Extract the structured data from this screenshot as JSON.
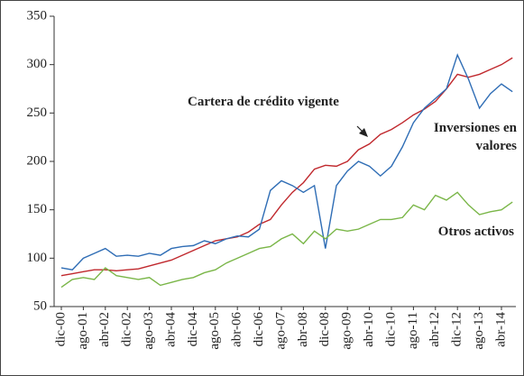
{
  "chart_data": {
    "type": "line",
    "categories": [
      "dic-00",
      null,
      "ago-01",
      null,
      "abr-02",
      null,
      "dic-02",
      null,
      "ago-03",
      null,
      "abr-04",
      null,
      "dic-04",
      null,
      "ago-05",
      null,
      "abr-06",
      null,
      "dic-06",
      null,
      "ago-07",
      null,
      "abr-08",
      null,
      "dic-08",
      null,
      "ago-09",
      null,
      "abr-10",
      null,
      "dic-10",
      null,
      "ago-11",
      null,
      "abr-12",
      null,
      "dic-12",
      null,
      "ago-13",
      null,
      "abr-14",
      null
    ],
    "series": [
      {
        "name": "Cartera de crédito vigente",
        "color": "#c0282d",
        "values": [
          82,
          84,
          86,
          88,
          88,
          87,
          88,
          89,
          92,
          95,
          98,
          103,
          108,
          113,
          118,
          120,
          122,
          127,
          135,
          140,
          155,
          168,
          178,
          192,
          196,
          195,
          200,
          212,
          218,
          228,
          233,
          240,
          248,
          254,
          262,
          275,
          290,
          287,
          290,
          295,
          300,
          307
        ]
      },
      {
        "name": "Inversiones en valores",
        "color": "#2f6db5",
        "values": [
          90,
          88,
          100,
          105,
          110,
          102,
          103,
          102,
          105,
          103,
          110,
          112,
          113,
          118,
          115,
          120,
          123,
          122,
          130,
          170,
          180,
          175,
          168,
          175,
          110,
          175,
          190,
          200,
          195,
          185,
          195,
          215,
          240,
          255,
          265,
          275,
          310,
          285,
          255,
          270,
          280,
          272
        ]
      },
      {
        "name": "Otros activos",
        "color": "#7ab648",
        "values": [
          70,
          78,
          80,
          78,
          90,
          82,
          80,
          78,
          80,
          72,
          75,
          78,
          80,
          85,
          88,
          95,
          100,
          105,
          110,
          112,
          120,
          125,
          115,
          128,
          120,
          130,
          128,
          130,
          135,
          140,
          140,
          142,
          155,
          150,
          165,
          160,
          168,
          155,
          145,
          148,
          150,
          158
        ]
      }
    ],
    "ylim": [
      50,
      350
    ],
    "yticks": [
      50,
      100,
      150,
      200,
      250,
      300,
      350
    ]
  }
}
